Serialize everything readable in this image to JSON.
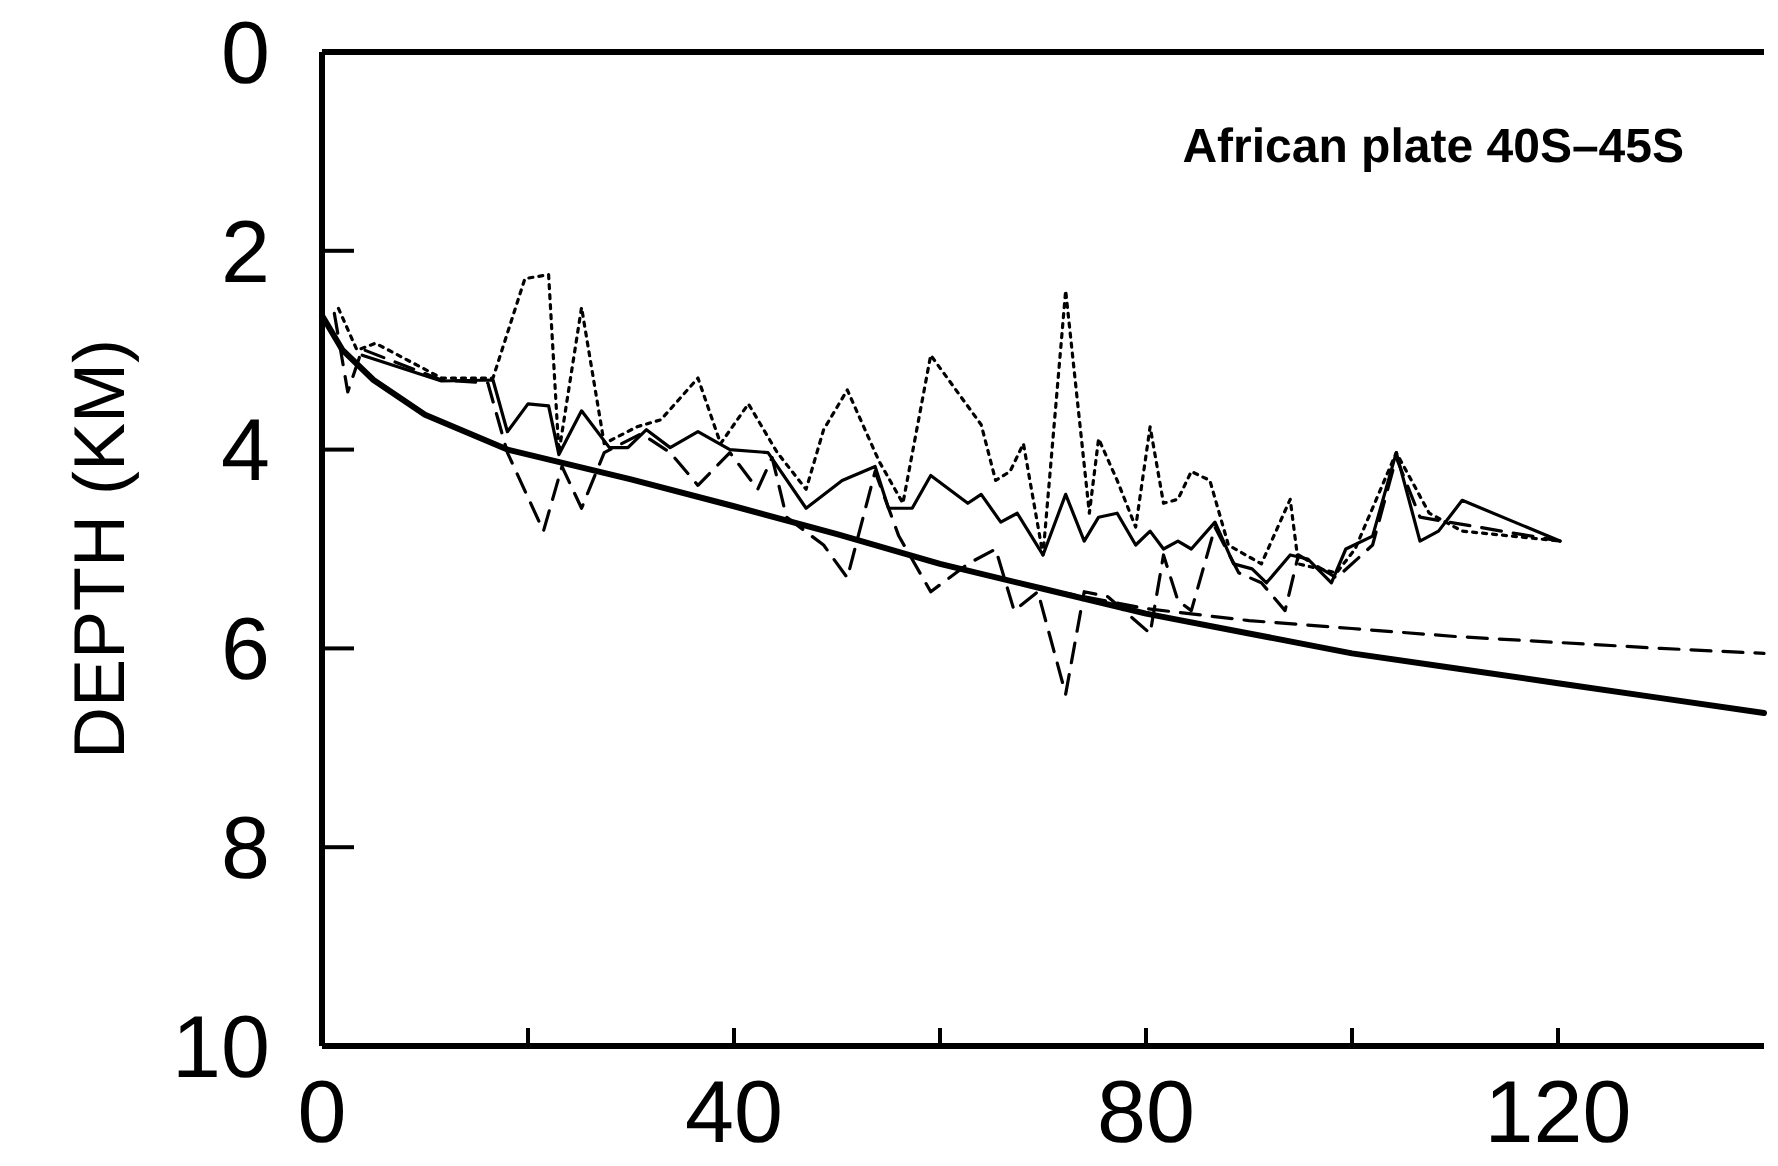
{
  "chart_data": {
    "type": "line",
    "title": "African plate 40S–45S",
    "ylabel": "DEPTH (KM)",
    "xlim": [
      0,
      140
    ],
    "ylim": [
      10,
      0
    ],
    "xticks": [
      0,
      {
        "value": 20,
        "label": null
      },
      40,
      {
        "value": 60,
        "label": null
      },
      80,
      {
        "value": 100,
        "label": null
      },
      120
    ],
    "yticks": [
      0,
      2,
      4,
      6,
      8,
      10
    ],
    "grid": false,
    "marker": "none",
    "series": [
      {
        "color": "#000000",
        "line_style": "dotted",
        "x": [
          1.6,
          3.4,
          5.2,
          11.6,
          16.6,
          19.7,
          22,
          23,
          25.2,
          27.4,
          30.6,
          32.9,
          36.5,
          38.7,
          41.4,
          44.2,
          47,
          48.7,
          51,
          54.1,
          56.4,
          59.1,
          64,
          65.4,
          66.8,
          68.1,
          70,
          72.2,
          74.5,
          75.4,
          77.2,
          79,
          80.4,
          81.7,
          83.1,
          84.4,
          86.2,
          88,
          91.2,
          94,
          94.8,
          98.5,
          100.3,
          104.3,
          107.5,
          110.7,
          120.2
        ],
        "values": [
          2.58,
          3.0,
          2.93,
          3.28,
          3.28,
          2.28,
          2.24,
          4.03,
          2.57,
          3.94,
          3.77,
          3.7,
          3.28,
          3.94,
          3.54,
          4.03,
          4.4,
          3.8,
          3.4,
          4.12,
          4.54,
          3.05,
          3.75,
          4.31,
          4.22,
          3.94,
          5.06,
          2.4,
          4.64,
          3.89,
          4.31,
          4.78,
          3.77,
          4.54,
          4.5,
          4.22,
          4.31,
          4.96,
          5.15,
          4.5,
          5.15,
          5.24,
          5.0,
          4.03,
          4.64,
          4.82,
          4.92
        ]
      },
      {
        "color": "#000000",
        "line_style": "solid",
        "x": [
          3.9,
          11.6,
          16.6,
          18,
          20,
          22,
          23,
          25.2,
          27.9,
          29.7,
          31.5,
          33.8,
          36.5,
          39.6,
          43.3,
          47,
          50.5,
          53.7,
          55,
          57.3,
          59.1,
          62.7,
          64,
          65.9,
          67.5,
          70,
          72.2,
          74,
          75.4,
          77.2,
          79,
          80.4,
          81.7,
          83.1,
          84.4,
          86.7,
          88.5,
          90.3,
          91.7,
          94,
          95.7,
          98,
          99.4,
          102,
          104.3,
          106.6,
          108.4,
          110.7,
          120.2
        ],
        "values": [
          3.05,
          3.31,
          3.3,
          3.82,
          3.54,
          3.56,
          4.05,
          3.61,
          3.98,
          3.98,
          3.8,
          3.98,
          3.82,
          4.0,
          4.03,
          4.59,
          4.31,
          4.17,
          4.59,
          4.59,
          4.26,
          4.54,
          4.45,
          4.73,
          4.64,
          5.06,
          4.45,
          4.92,
          4.68,
          4.64,
          4.96,
          4.82,
          5.0,
          4.92,
          5.0,
          4.73,
          5.15,
          5.2,
          5.34,
          5.06,
          5.1,
          5.34,
          5.0,
          4.87,
          4.03,
          4.92,
          4.82,
          4.51,
          4.92
        ]
      },
      {
        "color": "#000000",
        "line_style": "dashed",
        "x": [
          1.2,
          2.5,
          3.9,
          11.6,
          16.1,
          18,
          21.5,
          23.3,
          25.2,
          27.4,
          31,
          33.8,
          36.5,
          39.6,
          42.3,
          43.7,
          45.1,
          48.7,
          51,
          53.7,
          56,
          59.1,
          62.7,
          65.4,
          67.2,
          69.5,
          72.2,
          74,
          76.3,
          80.4,
          81.7,
          83.1,
          84.4,
          86.7,
          89,
          91.2,
          93.5,
          94.8,
          98.5,
          102,
          104.3,
          106.6,
          120.2
        ],
        "values": [
          2.63,
          3.42,
          2.99,
          3.3,
          3.33,
          4.03,
          4.82,
          4.17,
          4.59,
          4.03,
          3.84,
          4.03,
          4.36,
          4.03,
          4.4,
          4.08,
          4.68,
          4.96,
          5.29,
          4.22,
          4.87,
          5.43,
          5.15,
          5.0,
          5.62,
          5.43,
          6.46,
          5.43,
          5.48,
          5.85,
          5.06,
          5.52,
          5.62,
          4.78,
          5.24,
          5.34,
          5.62,
          5.06,
          5.29,
          4.96,
          4.08,
          4.68,
          4.92
        ]
      },
      {
        "color": "#000000",
        "line_style": "dashed",
        "x": [
          0,
          2,
          5,
          10,
          18,
          30,
          40,
          50,
          60,
          70,
          80,
          90,
          100,
          110,
          120,
          130,
          140
        ],
        "values": [
          2.65,
          3.0,
          3.3,
          3.65,
          4.0,
          4.3,
          4.57,
          4.85,
          5.15,
          5.4,
          5.6,
          5.72,
          5.8,
          5.88,
          5.94,
          6.0,
          6.05
        ]
      },
      {
        "color": "#000000",
        "line_style": "solid",
        "x": [
          0,
          2,
          5,
          10,
          18,
          30,
          40,
          50,
          60,
          70,
          80,
          90,
          100,
          110,
          120,
          130,
          140
        ],
        "values": [
          2.65,
          3.0,
          3.3,
          3.65,
          4.0,
          4.3,
          4.57,
          4.85,
          5.15,
          5.4,
          5.65,
          5.85,
          6.05,
          6.2,
          6.35,
          6.5,
          6.65
        ]
      }
    ]
  }
}
